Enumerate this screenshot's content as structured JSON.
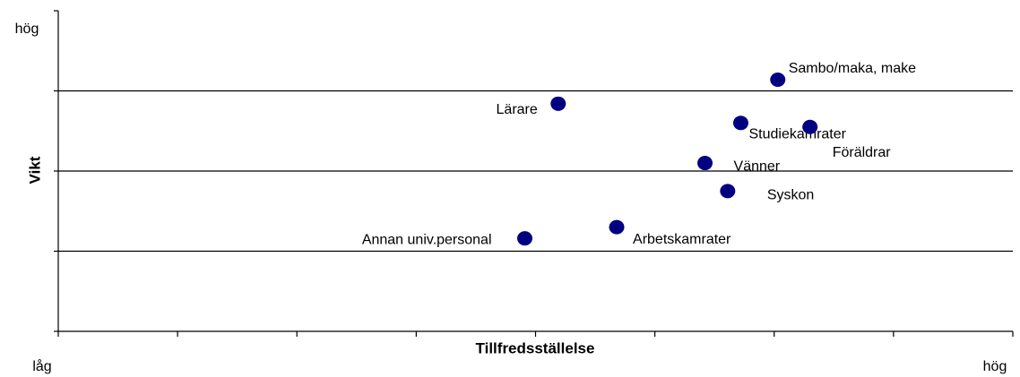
{
  "chart_data": {
    "type": "scatter",
    "xlabel": "Tillfredsställelse",
    "ylabel": "Vikt",
    "x_low_label": "låg",
    "x_high_label": "hög",
    "y_high_label": "hög",
    "labels": [
      "Sambo/maka, make",
      "Lärare",
      "Studiekamrater",
      "Föräldrar",
      "Vänner",
      "Syskon",
      "Arbetskamrater",
      "Annan univ.personal"
    ],
    "x": [
      6.03,
      4.19,
      5.72,
      6.3,
      5.42,
      5.61,
      4.68,
      3.91
    ],
    "values": [
      3.14,
      2.84,
      2.6,
      2.55,
      2.1,
      1.75,
      1.3,
      1.16
    ],
    "color": "#000080",
    "xlim": [
      0,
      8
    ],
    "xticks": [
      0,
      1,
      2,
      3,
      4,
      5,
      6,
      7,
      8
    ],
    "ylim": [
      0,
      4
    ],
    "yticks": [
      0,
      1,
      2,
      3,
      4
    ],
    "grid": true
  }
}
